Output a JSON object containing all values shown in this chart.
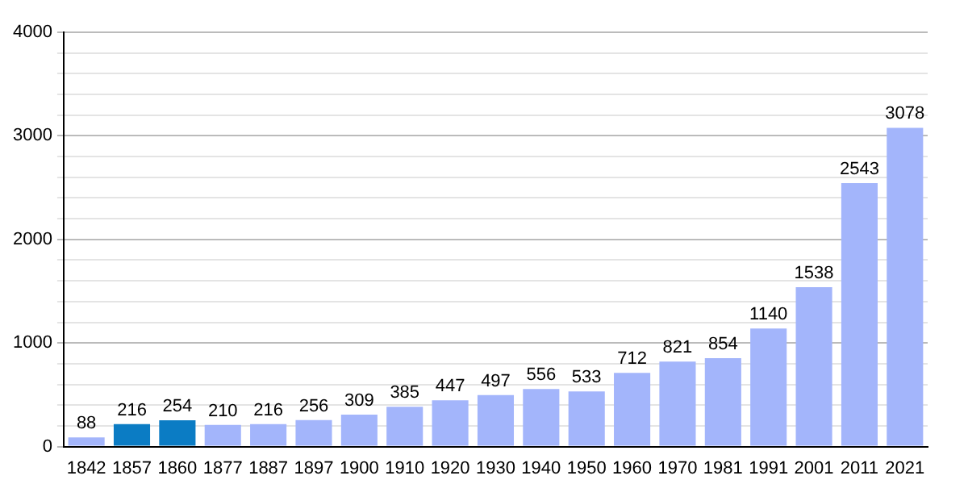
{
  "chart_data": {
    "type": "bar",
    "categories": [
      "1842",
      "1857",
      "1860",
      "1877",
      "1887",
      "1897",
      "1900",
      "1910",
      "1920",
      "1930",
      "1940",
      "1950",
      "1960",
      "1970",
      "1981",
      "1991",
      "2001",
      "2011",
      "2021"
    ],
    "values": [
      88,
      216,
      254,
      210,
      216,
      256,
      309,
      385,
      447,
      497,
      556,
      533,
      712,
      821,
      854,
      1140,
      1538,
      2543,
      3078
    ],
    "colors": [
      "#a3b5fb",
      "#0b7cc4",
      "#0b7cc4",
      "#a3b5fb",
      "#a3b5fb",
      "#a3b5fb",
      "#a3b5fb",
      "#a3b5fb",
      "#a3b5fb",
      "#a3b5fb",
      "#a3b5fb",
      "#a3b5fb",
      "#a3b5fb",
      "#a3b5fb",
      "#a3b5fb",
      "#a3b5fb",
      "#a3b5fb",
      "#a3b5fb",
      "#a3b5fb"
    ],
    "ylim": [
      0,
      4000
    ],
    "yticks": [
      0,
      {
        "value": 200,
        "label": null
      },
      {
        "value": 400,
        "label": null
      },
      {
        "value": 600,
        "label": null
      },
      {
        "value": 800,
        "label": null
      },
      1000,
      {
        "value": 1200,
        "label": null
      },
      {
        "value": 1400,
        "label": null
      },
      {
        "value": 1600,
        "label": null
      },
      {
        "value": 1800,
        "label": null
      },
      2000,
      {
        "value": 2200,
        "label": null
      },
      {
        "value": 2400,
        "label": null
      },
      {
        "value": 2600,
        "label": null
      },
      {
        "value": 2800,
        "label": null
      },
      3000,
      {
        "value": 3200,
        "label": null
      },
      {
        "value": 3400,
        "label": null
      },
      {
        "value": 3600,
        "label": null
      },
      {
        "value": 3800,
        "label": null
      },
      4000
    ],
    "grid": "y",
    "data_labels": true,
    "legend": false
  }
}
